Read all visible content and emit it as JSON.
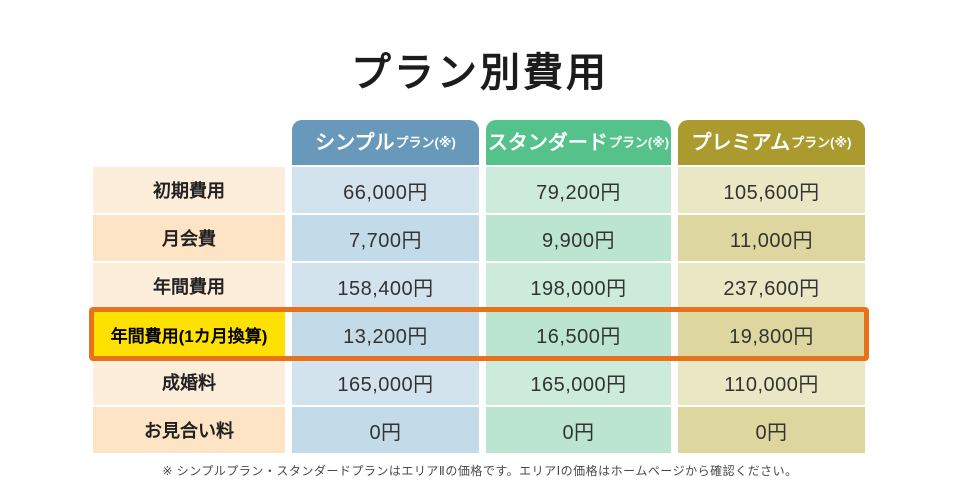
{
  "title": "プラン別費用",
  "table": {
    "plans": [
      {
        "name": "シンプル",
        "suffix": "プラン(※)",
        "header_color": "#6899ba",
        "cell_light": "#d3e3ed",
        "cell_dark": "#c3dae8"
      },
      {
        "name": "スタンダード",
        "suffix": "プラン(※)",
        "header_color": "#55c18b",
        "cell_light": "#cdebdb",
        "cell_dark": "#bbe5d1"
      },
      {
        "name": "プレミアム",
        "suffix": "プラン(※)",
        "header_color": "#ab9b2f",
        "cell_light": "#eae7c5",
        "cell_dark": "#ddd79f"
      }
    ],
    "rows": [
      {
        "label": "初期費用",
        "values": [
          "66,000円",
          "79,200円",
          "105,600円"
        ],
        "highlight": false
      },
      {
        "label": "月会費",
        "values": [
          "7,700円",
          "9,900円",
          "11,000円"
        ],
        "highlight": false
      },
      {
        "label": "年間費用",
        "values": [
          "158,400円",
          "198,000円",
          "237,600円"
        ],
        "highlight": false
      },
      {
        "label": "年間費用(1カ月換算)",
        "values": [
          "13,200円",
          "16,500円",
          "19,800円"
        ],
        "highlight": true
      },
      {
        "label": "成婚料",
        "values": [
          "165,000円",
          "165,000円",
          "110,000円"
        ],
        "highlight": false
      },
      {
        "label": "お見合い料",
        "values": [
          "0円",
          "0円",
          "0円"
        ],
        "highlight": false
      }
    ]
  },
  "footnote": "※ シンプルプラン・スタンダードプランはエリアⅡの価格です。エリアⅠの価格はホームページから確認ください。",
  "colors": {
    "highlight_bg": "#ffe100",
    "highlight_border": "#e8721c",
    "label_light": "#fdeedc",
    "label_dark": "#fce4c5",
    "title_text": "#1c1c1c"
  }
}
